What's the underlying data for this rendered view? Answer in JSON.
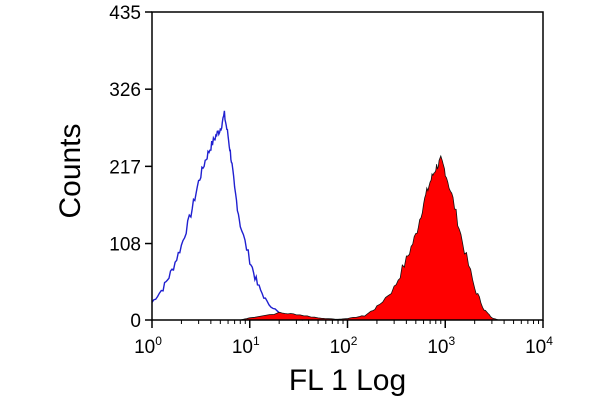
{
  "chart_data": {
    "type": "area",
    "xlabel": "FL 1 Log",
    "ylabel": "Counts",
    "xscale": "log",
    "xlim": [
      1,
      10000
    ],
    "ylim": [
      0,
      435
    ],
    "grid": false,
    "yticks": [
      0,
      108,
      217,
      326,
      435
    ],
    "yticklabels": [
      "0",
      "108",
      "217",
      "326",
      "435"
    ],
    "xticks": [
      1,
      10,
      100,
      1000,
      10000
    ],
    "xticklabels": [
      {
        "base": "10",
        "exp": "0"
      },
      {
        "base": "10",
        "exp": "1"
      },
      {
        "base": "10",
        "exp": "2"
      },
      {
        "base": "10",
        "exp": "3"
      },
      {
        "base": "10",
        "exp": "4"
      }
    ],
    "series": [
      {
        "style": "outline",
        "color": "#2020d0",
        "points": [
          [
            1.0,
            25
          ],
          [
            1.3,
            45
          ],
          [
            1.6,
            70
          ],
          [
            2.0,
            105
          ],
          [
            2.5,
            150
          ],
          [
            3.0,
            195
          ],
          [
            3.5,
            225
          ],
          [
            4.0,
            245
          ],
          [
            4.5,
            260
          ],
          [
            5.0,
            270
          ],
          [
            5.5,
            290
          ],
          [
            6.0,
            260
          ],
          [
            6.5,
            225
          ],
          [
            7.0,
            185
          ],
          [
            8.0,
            135
          ],
          [
            10.0,
            85
          ],
          [
            12.0,
            50
          ],
          [
            15.0,
            25
          ],
          [
            20.0,
            10
          ],
          [
            25.0,
            5
          ],
          [
            30.0,
            2
          ],
          [
            35.0,
            0
          ]
        ]
      },
      {
        "style": "filled",
        "color": "#ff0000",
        "points": [
          [
            8,
            0
          ],
          [
            10,
            3
          ],
          [
            20,
            10
          ],
          [
            30,
            8
          ],
          [
            50,
            3
          ],
          [
            80,
            1
          ],
          [
            100,
            2
          ],
          [
            150,
            6
          ],
          [
            200,
            18
          ],
          [
            300,
            45
          ],
          [
            400,
            85
          ],
          [
            500,
            120
          ],
          [
            600,
            165
          ],
          [
            700,
            195
          ],
          [
            800,
            215
          ],
          [
            900,
            225
          ],
          [
            1000,
            210
          ],
          [
            1200,
            170
          ],
          [
            1500,
            110
          ],
          [
            2000,
            45
          ],
          [
            2500,
            15
          ],
          [
            3000,
            3
          ],
          [
            3500,
            0
          ]
        ]
      }
    ]
  }
}
